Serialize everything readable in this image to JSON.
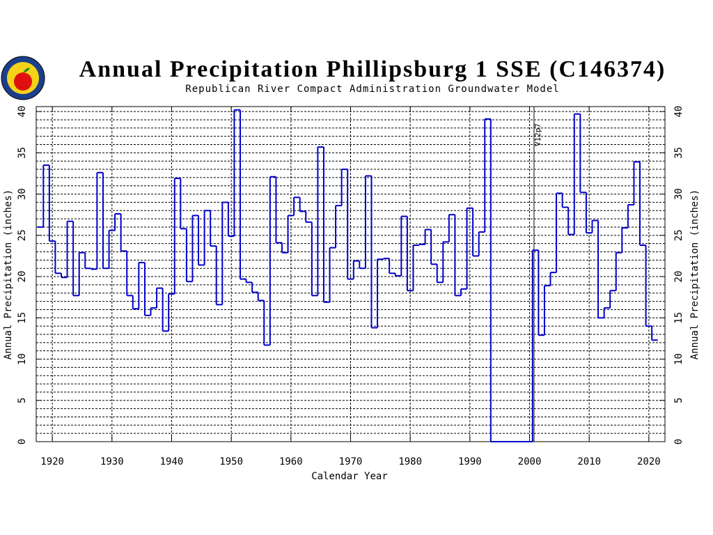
{
  "chart_data": {
    "type": "step",
    "title": "Annual Precipitation Phillipsburg 1 SSE (C146374)",
    "subtitle": "Republican River Compact Administration Groundwater Model",
    "x_label": "Calendar Year",
    "y_label": "Annual Precipitation (inches)",
    "color": "#0000cc",
    "xlim": [
      1917.3,
      2022.7
    ],
    "xticks": [
      1920,
      1930,
      1940,
      1950,
      1960,
      1970,
      1980,
      1990,
      2000,
      2010,
      2020
    ],
    "ylim": [
      0,
      40.6
    ],
    "yticks": [
      0,
      5,
      10,
      15,
      20,
      25,
      30,
      35,
      40
    ],
    "y_grid_step": 1,
    "grid": true,
    "vline": {
      "x": 2000.75,
      "label": "V12p7"
    },
    "x": [
      1918,
      1919,
      1920,
      1921,
      1922,
      1923,
      1924,
      1925,
      1926,
      1927,
      1928,
      1929,
      1930,
      1931,
      1932,
      1933,
      1934,
      1935,
      1936,
      1937,
      1938,
      1939,
      1940,
      1941,
      1942,
      1943,
      1944,
      1945,
      1946,
      1947,
      1948,
      1949,
      1950,
      1951,
      1952,
      1953,
      1954,
      1955,
      1956,
      1957,
      1958,
      1959,
      1960,
      1961,
      1962,
      1963,
      1964,
      1965,
      1966,
      1967,
      1968,
      1969,
      1970,
      1971,
      1972,
      1973,
      1974,
      1975,
      1976,
      1977,
      1978,
      1979,
      1980,
      1981,
      1982,
      1983,
      1984,
      1985,
      1986,
      1987,
      1988,
      1989,
      1990,
      1991,
      1992,
      1993,
      1994,
      1995,
      1996,
      1997,
      1998,
      1999,
      2000,
      2001,
      2002,
      2003,
      2004,
      2005,
      2006,
      2007,
      2008,
      2009,
      2010,
      2011,
      2012,
      2013,
      2014,
      2015,
      2016,
      2017,
      2018,
      2019,
      2020,
      2021
    ],
    "values": [
      26.0,
      33.5,
      24.3,
      20.4,
      19.9,
      26.7,
      17.7,
      22.9,
      21.0,
      20.9,
      32.6,
      21.0,
      25.6,
      27.6,
      23.1,
      17.7,
      16.1,
      21.7,
      15.3,
      16.2,
      18.6,
      13.4,
      17.9,
      31.9,
      25.8,
      19.4,
      27.4,
      21.4,
      28.0,
      23.7,
      16.6,
      29.0,
      24.9,
      40.2,
      19.7,
      19.3,
      18.1,
      17.1,
      11.7,
      32.1,
      24.1,
      22.9,
      27.4,
      29.6,
      27.9,
      26.6,
      17.7,
      35.7,
      16.9,
      23.5,
      28.6,
      33.0,
      19.7,
      21.9,
      21.0,
      32.2,
      13.8,
      22.1,
      22.2,
      20.4,
      20.1,
      27.3,
      18.3,
      23.8,
      23.9,
      25.7,
      21.5,
      19.3,
      24.2,
      27.5,
      17.7,
      18.5,
      28.3,
      22.5,
      25.4,
      39.1,
      0,
      0,
      0,
      0,
      0,
      0,
      0,
      23.2,
      12.9,
      18.9,
      20.5,
      30.1,
      28.4,
      25.1,
      39.7,
      30.2,
      25.3,
      26.8,
      15.0,
      16.2,
      18.3,
      22.9,
      25.9,
      28.7,
      33.9,
      23.8,
      14.0,
      12.3
    ]
  }
}
